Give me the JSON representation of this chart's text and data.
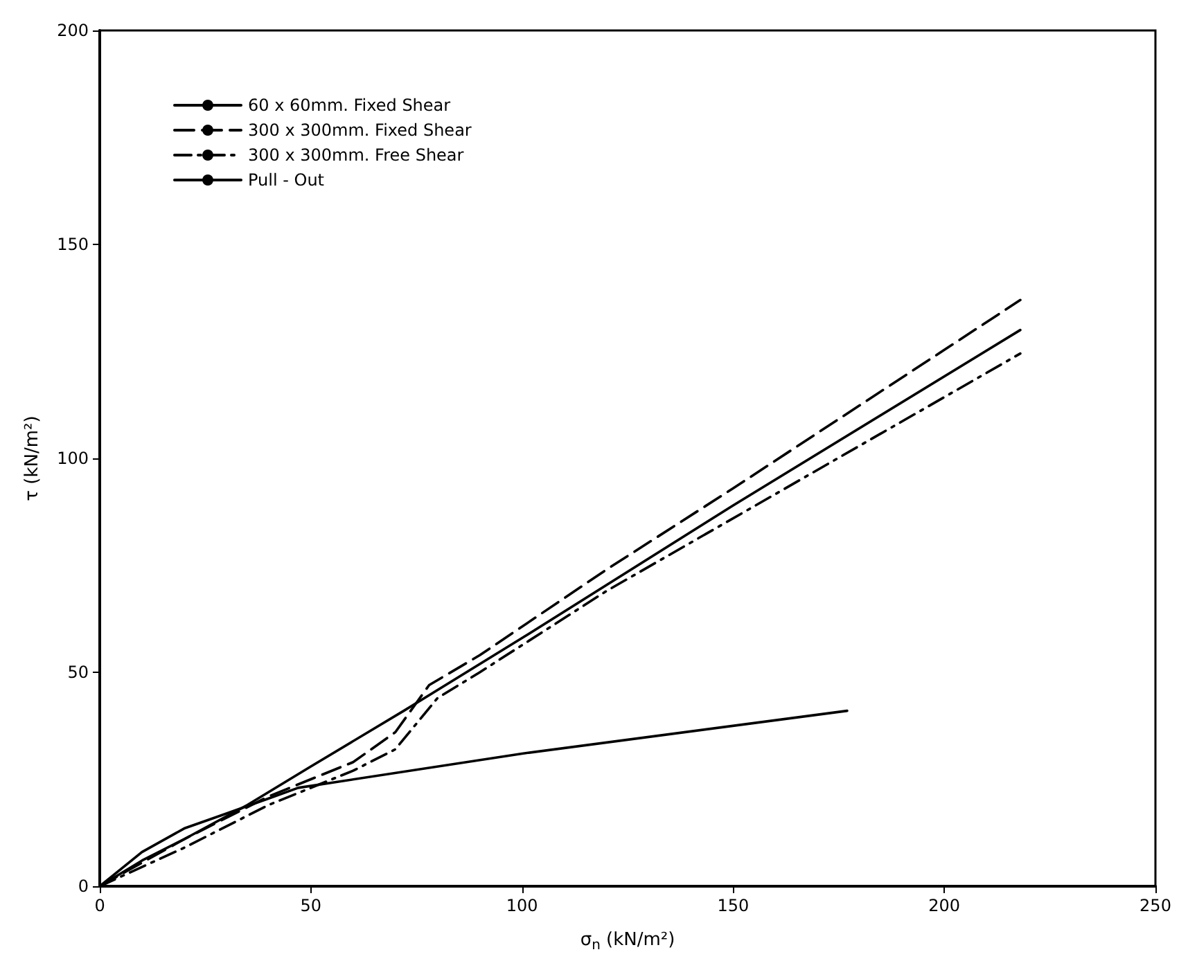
{
  "chart_data": {
    "type": "line",
    "xlabel": "σ$_{n}$ (kN/m²)",
    "ylabel": "τ (kN/m²)",
    "xlim": [
      0,
      250
    ],
    "xticks": [
      0,
      50,
      100,
      150,
      200,
      250
    ],
    "ylim": [
      0,
      200
    ],
    "yticks": [
      0,
      50,
      100,
      150,
      200
    ],
    "grid": false,
    "legend": "top left",
    "marker": "none",
    "series": [
      {
        "name": "60 x 60mm. Fixed Shear",
        "color": "#000000",
        "line_style": "solid",
        "x": [
          0,
          10,
          20,
          35,
          50,
          72,
          100,
          150,
          218
        ],
        "values": [
          0,
          6,
          11,
          19,
          28,
          41,
          58,
          89,
          130
        ]
      },
      {
        "name": "300 x 300mm. Fixed Shear",
        "color": "#000000",
        "line_style": "dashed",
        "x": [
          0,
          20,
          40,
          60,
          70,
          78,
          90,
          120,
          150,
          218
        ],
        "values": [
          0,
          11,
          21,
          29,
          36,
          47,
          54,
          74,
          93,
          137
        ]
      },
      {
        "name": "300 x 300mm. Free Shear",
        "color": "#000000",
        "line_style": "dashdot",
        "x": [
          0,
          20,
          40,
          60,
          70,
          80,
          90,
          120,
          218
        ],
        "values": [
          0,
          9,
          19,
          27,
          32,
          44,
          50,
          69,
          124.5
        ]
      },
      {
        "name": "Pull - Out",
        "color": "#000000",
        "line_style": "solid",
        "x": [
          0,
          10,
          20,
          30,
          40,
          47,
          100,
          177
        ],
        "values": [
          0,
          8,
          13.5,
          17,
          20.5,
          23,
          31,
          41
        ]
      }
    ]
  }
}
